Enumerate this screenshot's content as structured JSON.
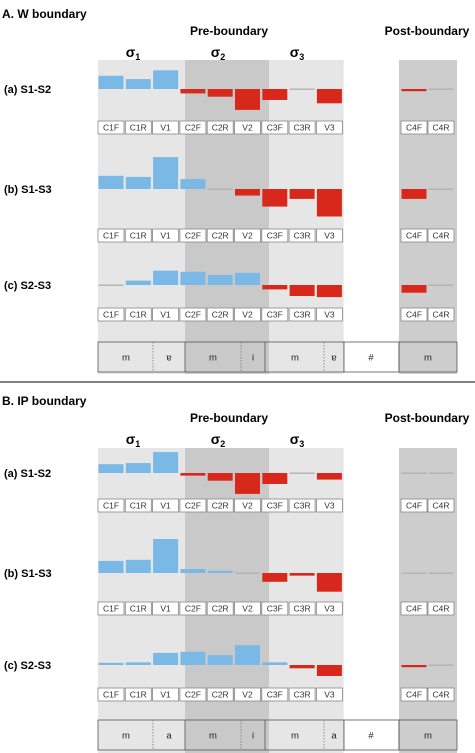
{
  "colors": {
    "increase": "#7ab8e6",
    "decrease": "#d8281c",
    "neutral": "#b4b4b4",
    "pre_bg_light": "#e6e6e6",
    "pre_bg_dark": "#c9c9c9",
    "post_bg": "#cdcdcd",
    "box_stroke": "#888888"
  },
  "group_titles": {
    "pre": "Pre-boundary",
    "post": "Post-boundary"
  },
  "syllables": [
    {
      "sigma": "σ",
      "sub": "1"
    },
    {
      "sigma": "σ",
      "sub": "2"
    },
    {
      "sigma": "σ",
      "sub": "3"
    }
  ],
  "cells": [
    "C1F",
    "C1R",
    "V1",
    "C2F",
    "C2R",
    "V2",
    "C3F",
    "C3R",
    "V3",
    "C4F",
    "C4R"
  ],
  "chart_data": [
    {
      "type": "bar",
      "title": "A. W boundary",
      "categories": [
        "C1F",
        "C1R",
        "V1",
        "C2F",
        "C2R",
        "V2",
        "C3F",
        "C3R",
        "V3",
        "C4F",
        "C4R"
      ],
      "series": [
        {
          "name": "(a) S1-S2",
          "values": [
            0.6,
            0.45,
            0.85,
            -0.2,
            -0.35,
            -0.95,
            -0.5,
            0.06,
            -0.65,
            -0.1,
            0.05
          ]
        },
        {
          "name": "(b) S1-S3",
          "values": [
            0.6,
            0.55,
            1.45,
            0.45,
            0.04,
            -0.3,
            -0.8,
            -0.45,
            -1.25,
            -0.45,
            0.03
          ]
        },
        {
          "name": "(c) S2-S3",
          "values": [
            0.05,
            0.2,
            0.65,
            0.6,
            0.45,
            0.55,
            -0.2,
            -0.5,
            -0.55,
            -0.35,
            0.0
          ]
        }
      ],
      "segments": [
        "m",
        "ɐ",
        "m",
        "i",
        "m",
        "ɐ",
        "#",
        "m"
      ]
    },
    {
      "type": "bar",
      "title": "B. IP boundary",
      "categories": [
        "C1F",
        "C1R",
        "V1",
        "C2F",
        "C2R",
        "V2",
        "C3F",
        "C3R",
        "V3",
        "C4F",
        "C4R"
      ],
      "series": [
        {
          "name": "(a) S1-S2",
          "values": [
            0.4,
            0.45,
            0.95,
            -0.12,
            -0.35,
            -0.95,
            -0.5,
            0.06,
            -0.3,
            -0.08,
            0.03
          ]
        },
        {
          "name": "(b) S1-S3",
          "values": [
            0.55,
            0.6,
            1.55,
            0.18,
            0.1,
            0.05,
            -0.4,
            -0.12,
            -0.85,
            0.0,
            0.03
          ]
        },
        {
          "name": "(c) S2-S3",
          "values": [
            0.1,
            0.12,
            0.55,
            0.6,
            0.45,
            0.9,
            0.12,
            -0.15,
            -0.5,
            -0.1,
            0.0
          ]
        }
      ],
      "segments": [
        "m",
        "a",
        "m",
        "i",
        "m",
        "a",
        "#",
        "m"
      ]
    }
  ]
}
